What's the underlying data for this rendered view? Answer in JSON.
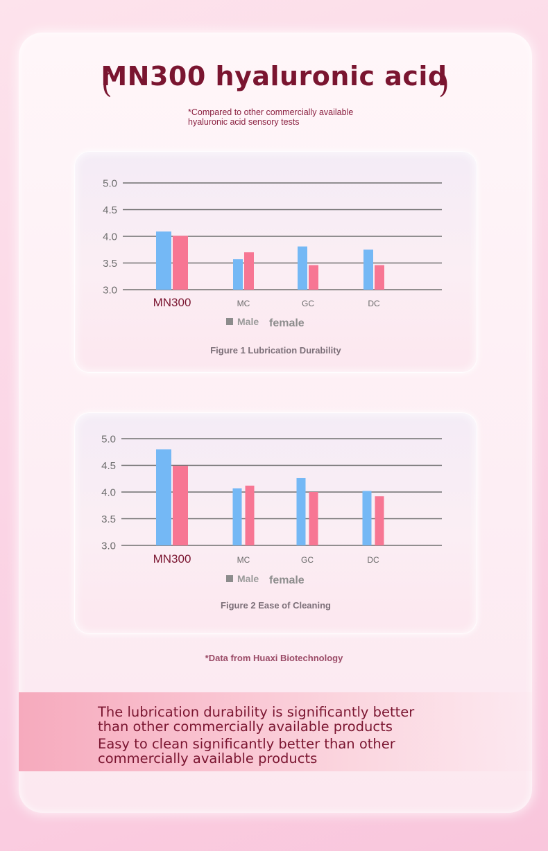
{
  "header": {
    "bracket_left": "(",
    "bracket_right": ")",
    "title": "MN300 hyaluronic acid",
    "subtitle_line1": "*Compared to other commercially available",
    "subtitle_line2": "hyaluronic acid sensory tests"
  },
  "legend": {
    "male_label": "Male",
    "female_label": "female"
  },
  "colors": {
    "male": "#74b8f5",
    "female": "#f77693",
    "gridline": "#6e6e6e",
    "highlight_tick": "#7a1530",
    "tick": "#6b6b6b"
  },
  "chart_data": [
    {
      "type": "bar",
      "title": "Figure 1 Lubrication Durability",
      "categories": [
        "MN300",
        "MC",
        "GC",
        "DC"
      ],
      "series": [
        {
          "name": "Male",
          "values": [
            4.09,
            3.57,
            3.81,
            3.75
          ]
        },
        {
          "name": "female",
          "values": [
            4.01,
            3.7,
            3.46,
            3.46
          ]
        }
      ],
      "ylim": [
        3.0,
        5.0
      ],
      "yticks": [
        "5.0",
        "4.5",
        "4.0",
        "3.5",
        "3.0"
      ],
      "grid": true,
      "legend_position": "bottom"
    },
    {
      "type": "bar",
      "title": "Figure 2 Ease of Cleaning",
      "categories": [
        "MN300",
        "MC",
        "GC",
        "DC"
      ],
      "series": [
        {
          "name": "Male",
          "values": [
            4.8,
            4.07,
            4.26,
            4.02
          ]
        },
        {
          "name": "female",
          "values": [
            4.49,
            4.12,
            4.0,
            3.92
          ]
        }
      ],
      "ylim": [
        3.0,
        5.0
      ],
      "yticks": [
        "5.0",
        "4.5",
        "4.0",
        "3.5",
        "3.0"
      ],
      "grid": true,
      "legend_position": "bottom"
    }
  ],
  "footnote": "*Data from Huaxi Biotechnology",
  "banner": {
    "line1": "The lubrication durability is significantly better",
    "line2": "than other commercially available products",
    "line3": "Easy to clean significantly better than other",
    "line4": "commercially available products"
  }
}
